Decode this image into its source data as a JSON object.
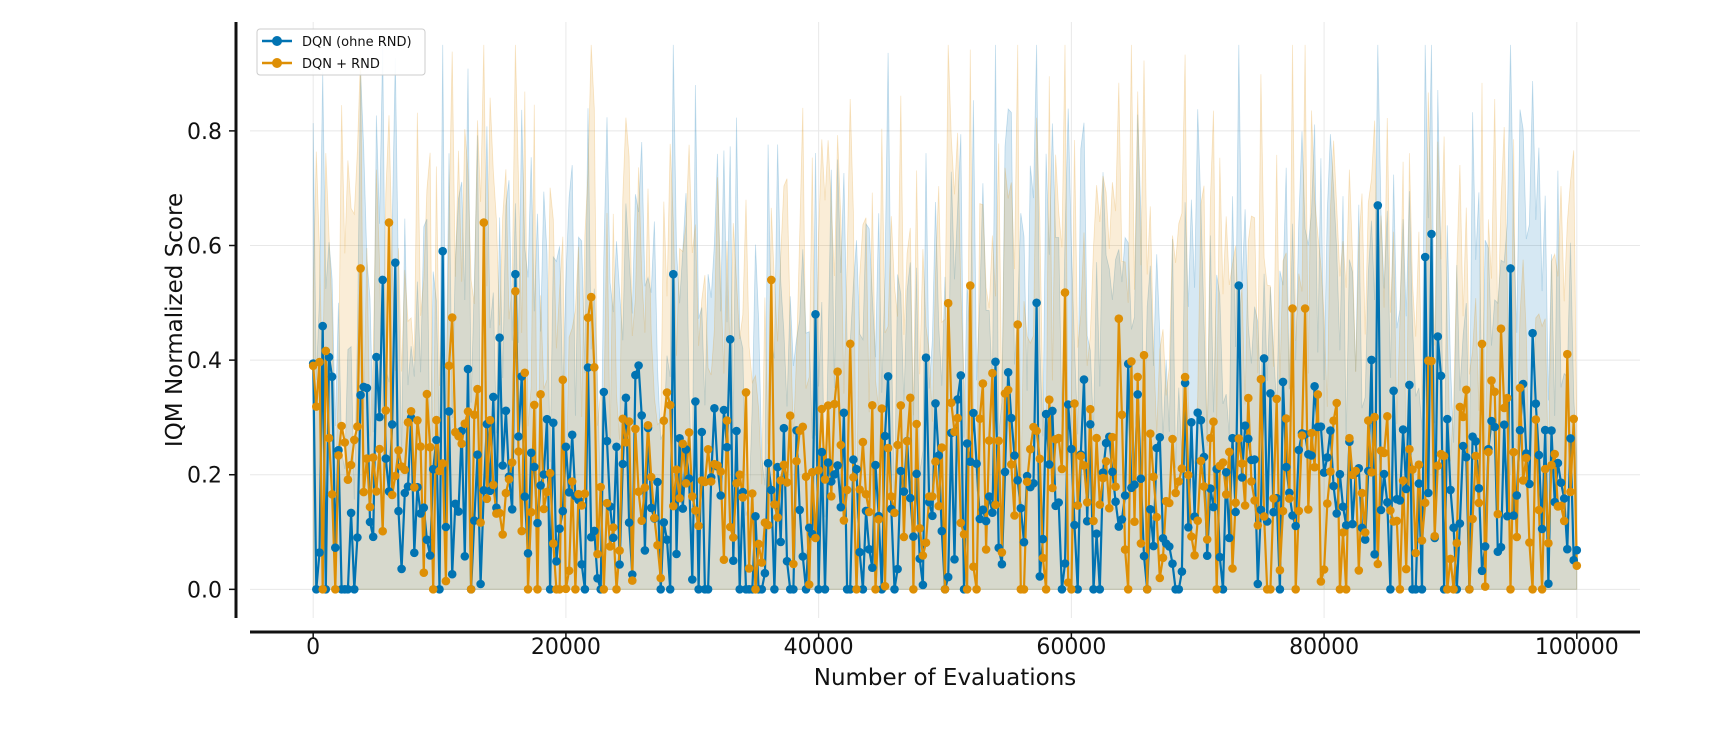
{
  "chart_data": {
    "type": "line",
    "title": "",
    "xlabel": "Number of Evaluations",
    "ylabel": "IQM Normalized Score",
    "xlim": [
      -5000,
      105000
    ],
    "ylim": [
      -0.05,
      0.99
    ],
    "xticks": [
      0,
      20000,
      40000,
      60000,
      80000,
      100000
    ],
    "xtick_labels": [
      "0",
      "20000",
      "40000",
      "60000",
      "80000",
      "100000"
    ],
    "yticks": [
      0.0,
      0.2,
      0.4,
      0.6,
      0.8
    ],
    "ytick_labels": [
      "0.0",
      "0.2",
      "0.4",
      "0.6",
      "0.8"
    ],
    "grid": true,
    "legend_position": "top-left",
    "x_points": {
      "start": 0,
      "end": 100000,
      "step": 250
    },
    "series": [
      {
        "name": "DQN (ohne RND)",
        "color": "#0173b2",
        "markers": true,
        "mean_level": 0.17,
        "spread": 0.16,
        "ci_band": true,
        "notable_points": [
          {
            "x": 1000,
            "y": 0.0
          },
          {
            "x": 2800,
            "y": 0.0
          },
          {
            "x": 3200,
            "y": 0.0
          },
          {
            "x": 5600,
            "y": 0.54
          },
          {
            "x": 6600,
            "y": 0.57
          },
          {
            "x": 10200,
            "y": 0.59
          },
          {
            "x": 16000,
            "y": 0.55
          },
          {
            "x": 28500,
            "y": 0.55
          },
          {
            "x": 33800,
            "y": 0.0
          },
          {
            "x": 39800,
            "y": 0.48
          },
          {
            "x": 57300,
            "y": 0.5
          },
          {
            "x": 73300,
            "y": 0.53
          },
          {
            "x": 84300,
            "y": 0.67
          },
          {
            "x": 88000,
            "y": 0.58
          },
          {
            "x": 88400,
            "y": 0.62
          },
          {
            "x": 94700,
            "y": 0.56
          },
          {
            "x": 99300,
            "y": 0.07
          }
        ]
      },
      {
        "name": "DQN + RND",
        "color": "#de8f05",
        "markers": true,
        "mean_level": 0.19,
        "spread": 0.16,
        "ci_band": true,
        "notable_points": [
          {
            "x": 0,
            "y": 0.39
          },
          {
            "x": 3800,
            "y": 0.56
          },
          {
            "x": 6100,
            "y": 0.64
          },
          {
            "x": 13500,
            "y": 0.64
          },
          {
            "x": 16100,
            "y": 0.52
          },
          {
            "x": 22000,
            "y": 0.51
          },
          {
            "x": 36300,
            "y": 0.54
          },
          {
            "x": 52100,
            "y": 0.53
          },
          {
            "x": 77500,
            "y": 0.49
          },
          {
            "x": 78400,
            "y": 0.49
          },
          {
            "x": 99500,
            "y": 0.17
          }
        ]
      }
    ]
  }
}
